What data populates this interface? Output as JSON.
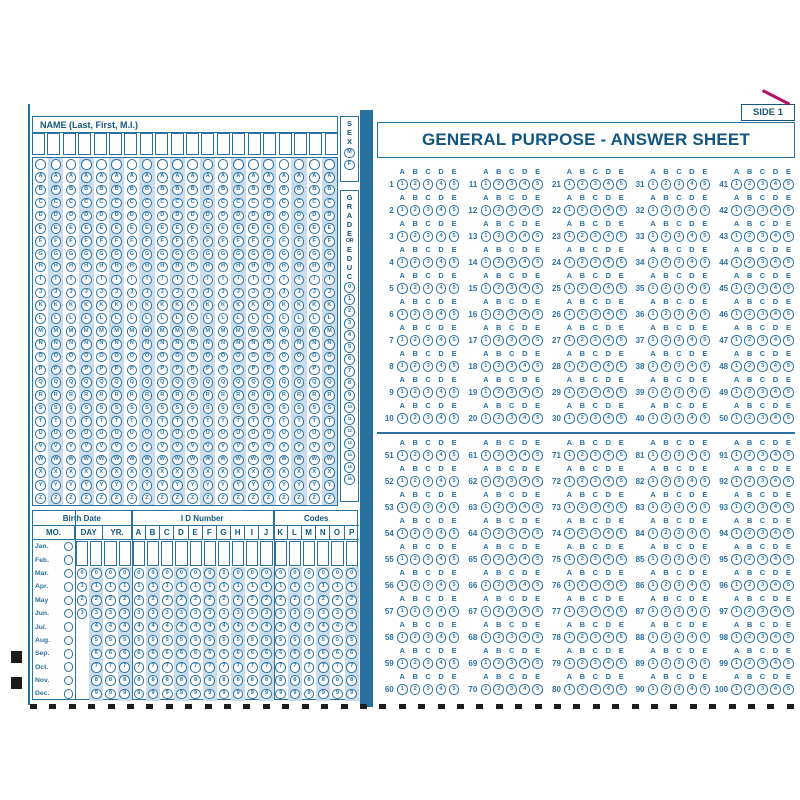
{
  "colors": {
    "ink": "#14567f",
    "ink_light": "#2b71a0",
    "stripe": "#c9ddec",
    "timing_mark": "#1c1c1c",
    "pen_mark": "#b5135f"
  },
  "side_label": "SIDE 1",
  "title": "GENERAL PURPOSE - ANSWER SHEET",
  "name_section": {
    "header": "NAME (Last, First, M.I.)",
    "columns": 20,
    "row_labels": [
      "",
      "A",
      "B",
      "C",
      "D",
      "E",
      "F",
      "G",
      "H",
      "I",
      "J",
      "K",
      "L",
      "M",
      "N",
      "O",
      "P",
      "Q",
      "R",
      "S",
      "T",
      "U",
      "V",
      "W",
      "X",
      "Y",
      "Z"
    ]
  },
  "sex_section": {
    "label_letters": [
      "S",
      "E",
      "X"
    ],
    "options": [
      "M",
      "F"
    ]
  },
  "grade_section": {
    "label_lines": [
      "G",
      "R",
      "A",
      "D",
      "E",
      "OR",
      "E",
      "D",
      "U",
      "C"
    ],
    "values": [
      "0",
      "1",
      "2",
      "3",
      "4",
      "5",
      "6",
      "7",
      "8",
      "9",
      "10",
      "11",
      "12",
      "13",
      "14",
      "15",
      "16"
    ]
  },
  "birth_section": {
    "group_headers": [
      {
        "label": "Birth Date",
        "span": 5
      },
      {
        "label": "I D Number",
        "span": 10
      },
      {
        "label": "Codes",
        "span": 6
      }
    ],
    "mo_header": "MO.",
    "col_headers": [
      {
        "label": "DAY",
        "span": 2
      },
      {
        "label": "YR.",
        "span": 2
      },
      {
        "label": "A"
      },
      {
        "label": "B"
      },
      {
        "label": "C"
      },
      {
        "label": "D"
      },
      {
        "label": "E"
      },
      {
        "label": "F"
      },
      {
        "label": "G"
      },
      {
        "label": "H"
      },
      {
        "label": "I"
      },
      {
        "label": "J"
      },
      {
        "label": "K"
      },
      {
        "label": "L"
      },
      {
        "label": "M"
      },
      {
        "label": "N"
      },
      {
        "label": "O"
      },
      {
        "label": "P"
      }
    ],
    "months": [
      "Jan.",
      "Feb.",
      "Mar.",
      "Apr.",
      "May",
      "Jun.",
      "Jul.",
      "Aug.",
      "Sep.",
      "Oct.",
      "Nov.",
      "Dec."
    ],
    "full_digits": [
      "0",
      "1",
      "2",
      "3",
      "4",
      "5",
      "6",
      "7",
      "8",
      "9"
    ],
    "digit_columns": [
      {
        "name": "day-tens",
        "digits": [
          "0",
          "1",
          "2",
          "3"
        ]
      },
      {
        "name": "day-ones"
      },
      {
        "name": "year-tens"
      },
      {
        "name": "year-ones"
      },
      {
        "name": "id-a"
      },
      {
        "name": "id-b"
      },
      {
        "name": "id-c"
      },
      {
        "name": "id-d"
      },
      {
        "name": "id-e"
      },
      {
        "name": "id-f"
      },
      {
        "name": "id-g"
      },
      {
        "name": "id-h"
      },
      {
        "name": "id-i"
      },
      {
        "name": "id-j"
      },
      {
        "name": "code-k"
      },
      {
        "name": "code-l"
      },
      {
        "name": "code-m"
      },
      {
        "name": "code-n"
      },
      {
        "name": "code-o"
      },
      {
        "name": "code-p"
      }
    ]
  },
  "answers": {
    "choice_letters": [
      "A",
      "B",
      "C",
      "D",
      "E"
    ],
    "bubble_digits": [
      "1",
      "2",
      "3",
      "4",
      "5"
    ],
    "blocks": [
      {
        "columns": [
          [
            1,
            2,
            3,
            4,
            5,
            6,
            7,
            8,
            9,
            10
          ],
          [
            11,
            12,
            13,
            14,
            15,
            16,
            17,
            18,
            19,
            20
          ],
          [
            21,
            22,
            23,
            24,
            25,
            26,
            27,
            28,
            29,
            30
          ],
          [
            31,
            32,
            33,
            34,
            35,
            36,
            37,
            38,
            39,
            40
          ],
          [
            41,
            42,
            43,
            44,
            45,
            46,
            47,
            48,
            49,
            50
          ]
        ]
      },
      {
        "columns": [
          [
            51,
            52,
            53,
            54,
            55,
            56,
            57,
            58,
            59,
            60
          ],
          [
            61,
            62,
            63,
            64,
            65,
            66,
            67,
            68,
            69,
            70
          ],
          [
            71,
            72,
            73,
            74,
            75,
            76,
            77,
            78,
            79,
            80
          ],
          [
            81,
            82,
            83,
            84,
            85,
            86,
            87,
            88,
            89,
            90
          ],
          [
            91,
            92,
            93,
            94,
            95,
            96,
            97,
            98,
            99,
            100
          ]
        ]
      }
    ]
  },
  "timing_marks": {
    "bottom_count": 40,
    "left_count": 2
  }
}
